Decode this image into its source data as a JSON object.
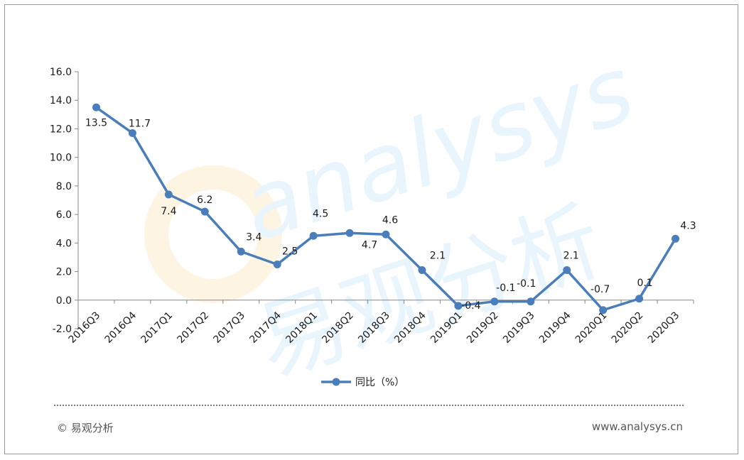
{
  "chart_data": {
    "type": "line",
    "categories": [
      "2016Q3",
      "2016Q4",
      "2017Q1",
      "2017Q2",
      "2017Q3",
      "2017Q4",
      "2018Q1",
      "2018Q2",
      "2018Q3",
      "2018Q4",
      "2019Q1",
      "2019Q2",
      "2019Q3",
      "2019Q4",
      "2020Q1",
      "2020Q2",
      "2020Q3"
    ],
    "series": [
      {
        "name": "同比（%）",
        "values": [
          13.5,
          11.7,
          7.4,
          6.2,
          3.4,
          2.5,
          4.5,
          4.7,
          4.6,
          2.1,
          -0.4,
          -0.1,
          -0.1,
          2.1,
          -0.7,
          0.1,
          4.3
        ]
      }
    ],
    "data_labels": [
      "13.5",
      "11.7",
      "7.4",
      "6.2",
      "3.4",
      "2.5",
      "4.5",
      "4.7",
      "4.6",
      "2.1",
      "-0.4",
      "-0.1",
      "-0.1",
      "2.1",
      "-0.7",
      "0.1",
      "4.3"
    ],
    "yticks": [
      "16.0",
      "14.0",
      "12.0",
      "10.0",
      "8.0",
      "6.0",
      "4.0",
      "2.0",
      "0.0",
      "-2.0"
    ],
    "ylim": [
      -2,
      16
    ],
    "grid": false,
    "legend": "bottom-center",
    "line_color": "#4a7ebb"
  },
  "watermark": {
    "text_latin": "analysys",
    "text_cjk": "易观分析"
  },
  "footer": {
    "copyright": "© 易观分析",
    "url": "www.analysys.cn"
  }
}
